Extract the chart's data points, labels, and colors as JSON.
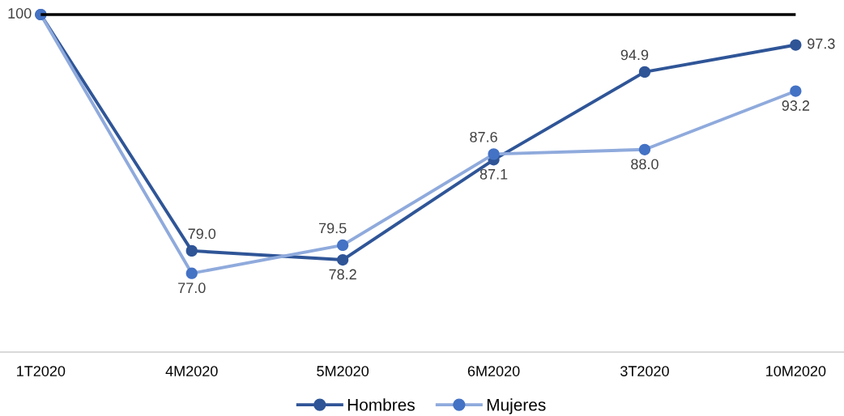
{
  "chart_data": {
    "type": "line",
    "categories": [
      "1T2020",
      "4M2020",
      "5M2020",
      "6M2020",
      "3T2020",
      "10M2020"
    ],
    "series": [
      {
        "name": "Hombres",
        "color": "#2f5597",
        "values": [
          100,
          79.0,
          78.2,
          87.1,
          94.9,
          97.3
        ],
        "value_labels": [
          "100",
          "79.0",
          "78.2",
          "87.1",
          "94.9",
          "97.3"
        ]
      },
      {
        "name": "Mujeres",
        "color": "#8faadc",
        "colors": [
          "#4472c4",
          "#4472c4",
          "#4472c4",
          "#4472c4",
          "#4472c4",
          "#4472c4"
        ],
        "values": [
          100,
          77.0,
          79.5,
          87.6,
          88.0,
          93.2
        ],
        "value_labels": [
          null,
          "77.0",
          "79.5",
          "87.6",
          "88.0",
          "93.2"
        ]
      }
    ],
    "ylim": [
      70,
      100
    ],
    "ref_lines": [
      {
        "axis": "y",
        "value": 100,
        "color": "#000000"
      }
    ],
    "tick_labels": "x",
    "grid": false,
    "legend": "bottom",
    "marker": "circle",
    "line_style": "solid"
  }
}
